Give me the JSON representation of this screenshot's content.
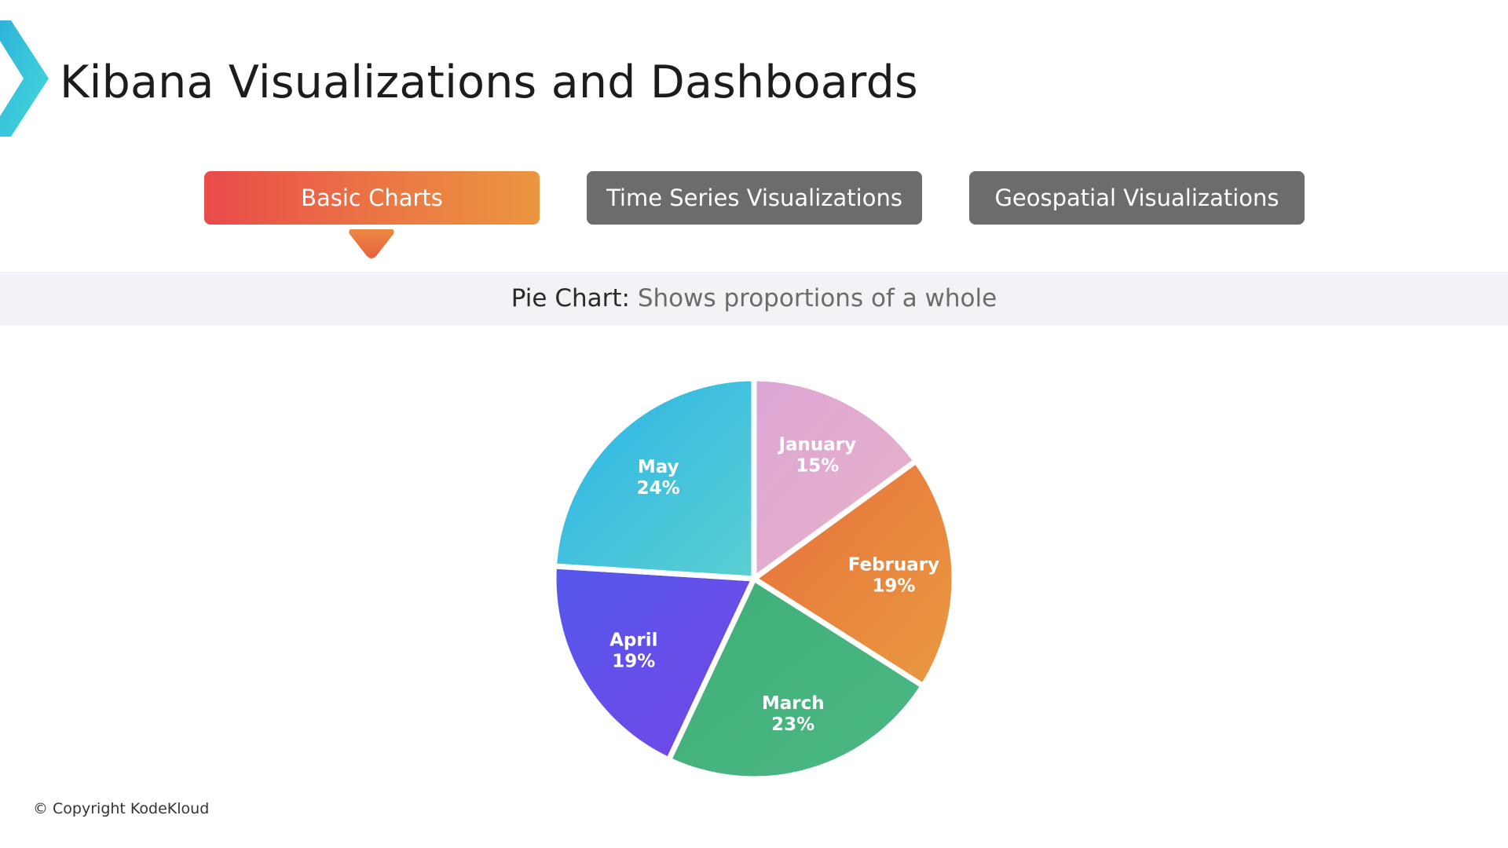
{
  "slide": {
    "title": "Kibana Visualizations and Dashboards",
    "copyright": "© Copyright KodeKloud"
  },
  "tabs": [
    {
      "label": "Basic Charts",
      "active": true
    },
    {
      "label": "Time Series Visualizations",
      "active": false
    },
    {
      "label": "Geospatial Visualizations",
      "active": false
    }
  ],
  "subtitle": {
    "term": "Pie Chart:",
    "description": "Shows proportions of a whole"
  },
  "colors": {
    "active_tab_start": "#e94a4a",
    "active_tab_end": "#eb9640",
    "inactive_tab": "#6c6c6c",
    "subtitle_band": "#f4f2f6"
  },
  "chart_data": {
    "type": "pie",
    "title": "",
    "slices": [
      {
        "label": "January",
        "value": 15,
        "value_label": "15%",
        "color_start": "#dca6d6",
        "color_end": "#e7b2c6"
      },
      {
        "label": "February",
        "value": 19,
        "value_label": "19%",
        "color_start": "#e86f3c",
        "color_end": "#e99a40"
      },
      {
        "label": "March",
        "value": 23,
        "value_label": "23%",
        "color_start": "#3fae78",
        "color_end": "#4cb884"
      },
      {
        "label": "April",
        "value": 19,
        "value_label": "19%",
        "color_start": "#5457ec",
        "color_end": "#7546e6"
      },
      {
        "label": "May",
        "value": 24,
        "value_label": "24%",
        "color_start": "#29b3e8",
        "color_end": "#5bd0d2"
      }
    ]
  }
}
